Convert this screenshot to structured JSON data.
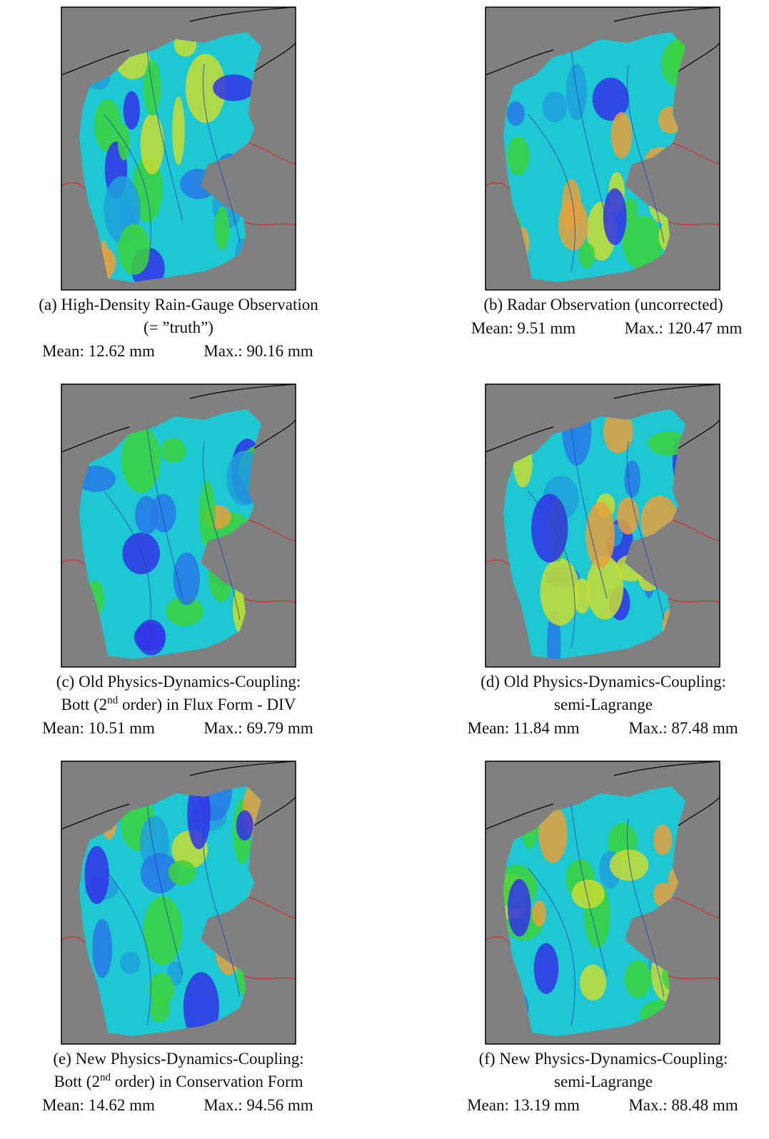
{
  "panels": [
    {
      "caption": [
        "(a) High-Density Rain-Gauge Observation",
        "(= ”truth”)"
      ],
      "mean": "Mean: 12.62 mm",
      "max": "Max.: 90.16 mm"
    },
    {
      "caption": [
        "(b) Radar Observation (uncorrected)"
      ],
      "mean": "Mean: 9.51 mm",
      "max": "Max.: 120.47 mm"
    },
    {
      "caption": [
        "(c) Old Physics-Dynamics-Coupling:",
        {
          "before": "Bott (2",
          "sup": "nd",
          "after": " order) in Flux Form - DIV"
        }
      ],
      "mean": "Mean: 10.51 mm",
      "max": "Max.: 69.79 mm"
    },
    {
      "caption": [
        "(d) Old Physics-Dynamics-Coupling:",
        "semi-Lagrange"
      ],
      "mean": "Mean: 11.84 mm",
      "max": "Max.: 87.48 mm"
    },
    {
      "caption": [
        "(e) New Physics-Dynamics-Coupling:",
        {
          "before": "Bott (2",
          "sup": "nd",
          "after": " order) in Conservation Form"
        }
      ],
      "mean": "Mean: 14.62 mm",
      "max": "Max.: 94.56 mm"
    },
    {
      "caption": [
        "(f) New Physics-Dynamics-Coupling:",
        "semi-Lagrange"
      ],
      "mean": "Mean: 13.19 mm",
      "max": "Max.: 88.48 mm"
    }
  ]
}
